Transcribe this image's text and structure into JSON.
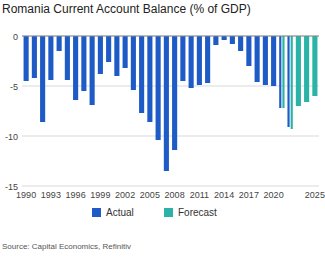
{
  "chart_data": {
    "type": "bar",
    "title": "Romania Current Account Balance (% of GDP)",
    "source": "Source: Capital Economics, Refinitiv",
    "categories": [
      "1990",
      null,
      null,
      "1993",
      null,
      null,
      "1996",
      null,
      null,
      "1999",
      null,
      null,
      "2002",
      null,
      null,
      "2005",
      null,
      null,
      "2008",
      null,
      null,
      "2011",
      null,
      null,
      "2014",
      null,
      null,
      "2017",
      null,
      null,
      "2020",
      null,
      null,
      null,
      null,
      "2025"
    ],
    "series": [
      {
        "name": "Actual",
        "color": "#1f5bc6",
        "values": [
          -4.5,
          -4.2,
          -8.6,
          -4.4,
          -1.5,
          -4.4,
          -6.4,
          -5.5,
          -6.9,
          -3.8,
          -2.6,
          -4.0,
          -3.2,
          -5.4,
          -7.7,
          -8.6,
          -10.4,
          -13.5,
          -11.4,
          -4.5,
          -5.2,
          -4.9,
          -4.7,
          -0.9,
          -0.4,
          -0.8,
          -1.5,
          -3.0,
          -4.6,
          -4.9,
          -5.0,
          -7.2,
          -9.1,
          null,
          null,
          null
        ]
      },
      {
        "name": "Forecast",
        "color": "#2ab3a6",
        "values": [
          null,
          null,
          null,
          null,
          null,
          null,
          null,
          null,
          null,
          null,
          null,
          null,
          null,
          null,
          null,
          null,
          null,
          null,
          null,
          null,
          null,
          null,
          null,
          null,
          null,
          null,
          null,
          null,
          null,
          null,
          null,
          -7.2,
          -9.3,
          -7.0,
          -6.6,
          -6.0
        ]
      }
    ],
    "ylim": [
      -15,
      0
    ],
    "yticks": [
      -15,
      -10,
      -5,
      0
    ],
    "grid": true,
    "legend": "bottom"
  }
}
